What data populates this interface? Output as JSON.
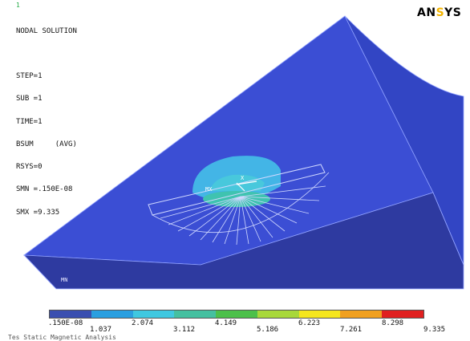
{
  "window": {
    "marker": "1"
  },
  "info_block": [
    "NODAL SOLUTION",
    "",
    "STEP=1",
    "SUB =1",
    "TIME=1",
    "BSUM     (AVG)",
    "RSYS=0",
    "SMN =.150E-08",
    "SMX =9.335"
  ],
  "logo": {
    "part1": "AN",
    "part2": "S",
    "part3": "YS",
    "accent_color": "#f2b400"
  },
  "labels": {
    "mx": "MX",
    "mn": "MN",
    "x_axis": "X"
  },
  "legend": {
    "colors": [
      "#3a4fb0",
      "#2a9fe0",
      "#3fc8e0",
      "#45c0a0",
      "#4cc04a",
      "#a8d83a",
      "#f5e61e",
      "#f0a020",
      "#e02020"
    ],
    "values_top": [
      ".150E-08",
      "1.037",
      "2.074",
      "3.112",
      "4.149",
      "5.186",
      "6.223",
      "7.261",
      "8.298",
      "9.335"
    ]
  },
  "caption": "Tes Static Magnetic Analysis",
  "colors": {
    "model_face": "#3b4ed4",
    "model_top": "#3447c8",
    "model_side": "#2a3a9c",
    "highlight": "#43b5e6"
  }
}
